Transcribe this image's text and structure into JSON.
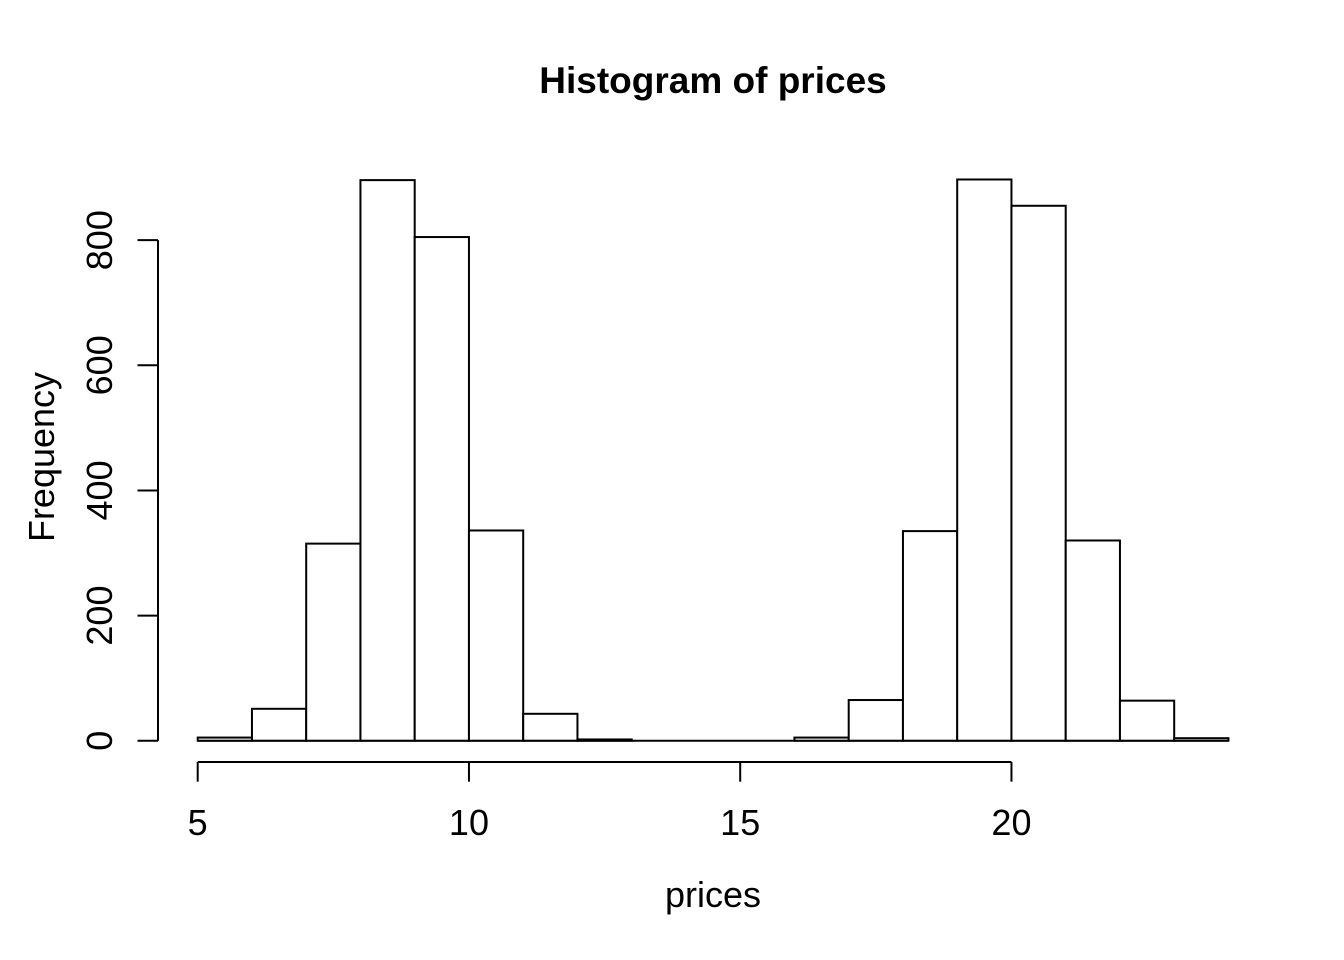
{
  "chart_data": {
    "type": "bar",
    "subtype": "histogram",
    "title": "Histogram of prices",
    "xlabel": "prices",
    "ylabel": "Frequency",
    "bin_edges": [
      5,
      6,
      7,
      8,
      9,
      10,
      11,
      12,
      13,
      14,
      15,
      16,
      17,
      18,
      19,
      20,
      21,
      22,
      23,
      24
    ],
    "counts": [
      5,
      51,
      315,
      896,
      805,
      336,
      43,
      2,
      0,
      0,
      0,
      5,
      65,
      335,
      897,
      855,
      320,
      64,
      4
    ],
    "x_ticks": [
      5,
      10,
      15,
      20
    ],
    "x_tick_labels": [
      "5",
      "10",
      "15",
      "20"
    ],
    "y_ticks": [
      0,
      200,
      400,
      600,
      800
    ],
    "y_tick_labels": [
      "0",
      "200",
      "400",
      "600",
      "800"
    ],
    "xlim": [
      5,
      24
    ],
    "ylim": [
      0,
      897
    ],
    "grid": false,
    "legend": false,
    "bar_fill": "#ffffff",
    "bar_stroke": "#000000",
    "axis_color": "#000000",
    "text_color": "#000000",
    "background": "#ffffff"
  }
}
